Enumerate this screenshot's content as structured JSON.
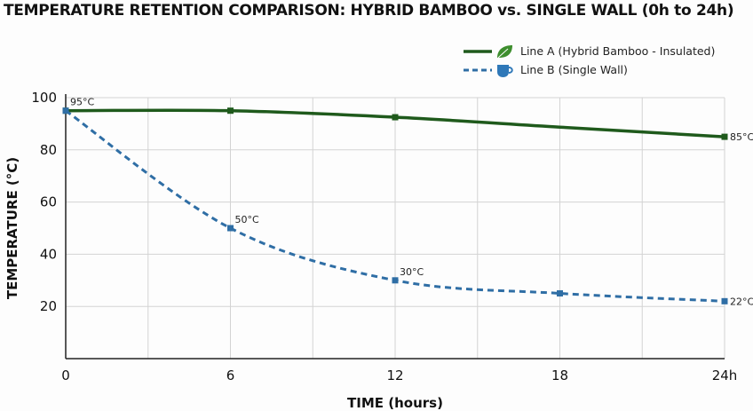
{
  "chart_data": {
    "type": "line",
    "title": "TEMPERATURE RETENTION COMPARISON: HYBRID BAMBOO vs. SINGLE WALL (0h to 24h)",
    "xlabel": "TIME (hours)",
    "ylabel": "TEMPERATURE (°C)",
    "xlim": [
      0,
      24
    ],
    "ylim": [
      0,
      100
    ],
    "x_ticks": [
      0,
      6,
      12,
      18,
      24
    ],
    "x_tick_labels": [
      "0",
      "6",
      "12",
      "18",
      "24h"
    ],
    "y_ticks": [
      20,
      40,
      60,
      80,
      100
    ],
    "y_tick_labels": [
      "20",
      "40",
      "60",
      "80",
      "100"
    ],
    "grid": true,
    "legend_position": "top-right",
    "series": [
      {
        "name": "Line A (Hybrid Bamboo - Insulated)",
        "style": "solid",
        "color": "#1f5a1c",
        "icon": "leaf-icon",
        "x": [
          0,
          6,
          12,
          18,
          24
        ],
        "y": [
          95,
          95,
          92.5,
          88.7,
          85
        ],
        "markers_at": [
          0,
          6,
          12,
          24
        ],
        "data_labels": [
          {
            "x": 24,
            "text": "85°C"
          }
        ]
      },
      {
        "name": "Line B (Single Wall)",
        "style": "dashed",
        "color": "#2f6ea5",
        "icon": "cup-icon",
        "x": [
          0,
          6,
          12,
          18,
          24
        ],
        "y": [
          95,
          50,
          30,
          25,
          22
        ],
        "markers_at": [
          0,
          6,
          12,
          18,
          24
        ],
        "data_labels": [
          {
            "x": 0,
            "text": "95°C"
          },
          {
            "x": 6,
            "text": "50°C"
          },
          {
            "x": 12,
            "text": "30°C"
          },
          {
            "x": 24,
            "text": "22°C"
          }
        ]
      }
    ]
  }
}
